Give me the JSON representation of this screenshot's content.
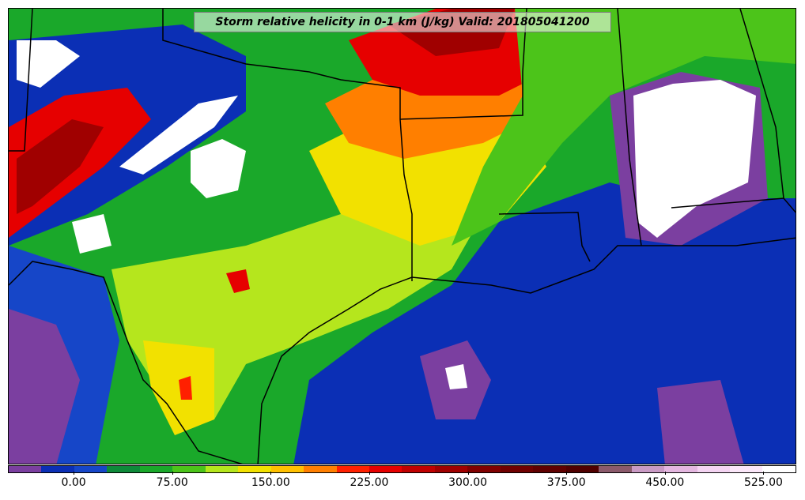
{
  "title": "Storm relative helicity in 0-1 km (J/kg) Valid: 201805041200",
  "colorbar": {
    "colors": [
      "#7b3fa0",
      "#0b2fb5",
      "#1646c8",
      "#0e8a3a",
      "#1aa82a",
      "#4cc41a",
      "#b5e61d",
      "#f2e100",
      "#ffc000",
      "#ff7f00",
      "#ff2000",
      "#e60000",
      "#c00000",
      "#a00000",
      "#800000",
      "#700000",
      "#600000",
      "#500000",
      "#8b5a6b",
      "#c99ac4",
      "#e4b7e0",
      "#f4d4f2",
      "#fbe7f9",
      "#ffffff"
    ],
    "ticks": [
      "0.00",
      "75.00",
      "150.00",
      "225.00",
      "300.00",
      "375.00",
      "450.00",
      "525.00"
    ]
  },
  "map_colors": {
    "gulf": "#0b2fb5",
    "purple": "#7b3fa0",
    "green": "#1aa82a",
    "yellow_green": "#b5e61d",
    "yellow": "#f2e100",
    "orange": "#ff7f00",
    "red": "#e60000",
    "dark_red": "#a00000",
    "no_data": "#ffffff"
  }
}
